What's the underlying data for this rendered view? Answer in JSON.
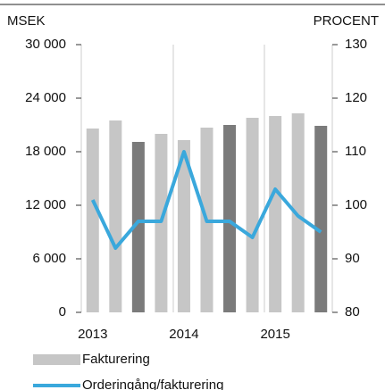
{
  "chart_data": {
    "type": "bar",
    "y_label": "MSEK",
    "y2_label": "PROCENT",
    "categories": [
      "2013",
      null,
      null,
      null,
      "2014",
      null,
      null,
      null,
      "2015",
      null,
      null
    ],
    "series": [
      {
        "name": "Fakturering",
        "type": "bar",
        "color": "#c6c6c6",
        "colors": [
          "#c6c6c6",
          "#c6c6c6",
          "#7b7b7b",
          "#c6c6c6",
          "#c6c6c6",
          "#c6c6c6",
          "#7b7b7b",
          "#c6c6c6",
          "#c6c6c6",
          "#c6c6c6",
          "#7b7b7b"
        ],
        "values": [
          20600,
          21500,
          19100,
          20000,
          19300,
          20700,
          21000,
          21800,
          22000,
          22300,
          20900
        ]
      },
      {
        "name": "Orderingång/fakturering",
        "type": "line",
        "axis": "y2",
        "color": "#3aa8dc",
        "values": [
          101,
          92,
          97,
          97,
          110,
          97,
          97,
          94,
          103,
          98,
          95
        ]
      }
    ],
    "ylim": [
      0,
      30000
    ],
    "yticks": [
      0,
      {
        "value": 6000,
        "label": "6 000"
      },
      {
        "value": 12000,
        "label": "12 000"
      },
      {
        "value": 18000,
        "label": "18 000"
      },
      {
        "value": 24000,
        "label": "24 000"
      },
      {
        "value": 30000,
        "label": "30 000"
      }
    ],
    "y2lim": [
      80,
      130
    ],
    "y2ticks": [
      80,
      90,
      100,
      110,
      120,
      130
    ]
  }
}
